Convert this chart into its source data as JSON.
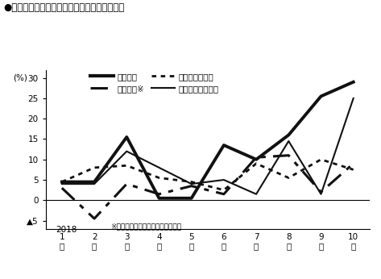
{
  "title": "●大手戸建、リフォームの受注前年同月比推移",
  "x": [
    1,
    2,
    3,
    4,
    5,
    6,
    7,
    8,
    9,
    10
  ],
  "ylabel": "(％)",
  "ylim": [
    -7,
    32
  ],
  "yticks": [
    -5,
    0,
    5,
    10,
    15,
    20,
    25,
    30
  ],
  "year_label": "2018",
  "footnote": "※化学戸建は受注棟数、他は受注額",
  "series": [
    {
      "name": "住林戸建",
      "values": [
        4.5,
        4.5,
        15.5,
        0.5,
        0.5,
        13.5,
        10.0,
        16.0,
        25.5,
        29.0
      ],
      "linestyle": "solid",
      "linewidth": 2.8,
      "color": "#111111",
      "legend_lw": 3.5
    },
    {
      "name": "化学戸建※",
      "values": [
        3.0,
        -4.5,
        4.0,
        1.5,
        3.5,
        1.5,
        10.5,
        11.0,
        2.0,
        9.0
      ],
      "linestyle": "dashdot",
      "linewidth": 2.2,
      "color": "#111111",
      "legend_lw": 2.5
    },
    {
      "name": "積水リフォーム",
      "values": [
        4.5,
        8.0,
        8.5,
        5.5,
        4.5,
        2.5,
        9.0,
        5.5,
        10.0,
        7.5
      ],
      "linestyle": "dotted",
      "linewidth": 2.0,
      "color": "#111111",
      "legend_lw": 2.0
    },
    {
      "name": "住林ホームテック",
      "values": [
        4.0,
        4.0,
        12.0,
        8.0,
        4.0,
        5.0,
        1.5,
        14.5,
        1.5,
        25.0
      ],
      "linestyle": "solid",
      "linewidth": 1.5,
      "color": "#111111",
      "legend_lw": 1.8
    }
  ]
}
